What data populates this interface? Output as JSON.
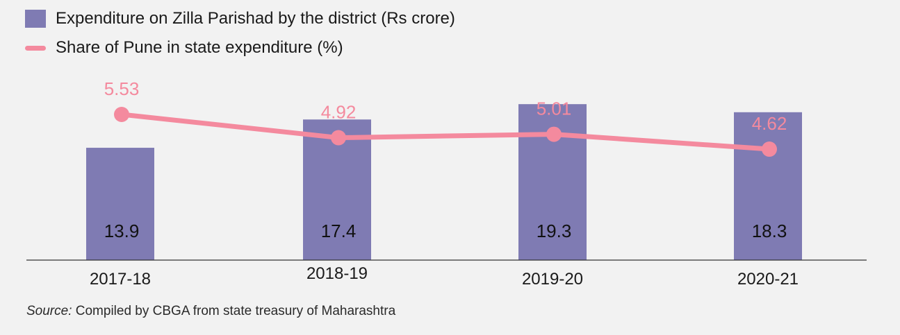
{
  "chart_data": {
    "type": "bar",
    "categories": [
      "2017-18",
      "2018-19",
      "2019-20",
      "2020-21"
    ],
    "series": [
      {
        "name": "Expenditure on Zilla Parishad by the district (Rs crore)",
        "kind": "bar",
        "color": "#7f7bb3",
        "values": [
          13.9,
          17.4,
          19.3,
          18.3
        ]
      },
      {
        "name": "Share of Pune in state expenditure (%)",
        "kind": "line",
        "color": "#f48a9e",
        "values": [
          5.53,
          4.92,
          5.01,
          4.62
        ]
      }
    ],
    "legend_position": "top-left",
    "grid": false
  },
  "legend": {
    "bar_label": "Expenditure on Zilla Parishad by the district (Rs crore)",
    "line_label": "Share of Pune in state expenditure (%)"
  },
  "source": {
    "prefix": "Source:",
    "text": " Compiled by CBGA from state treasury of Maharashtra"
  }
}
